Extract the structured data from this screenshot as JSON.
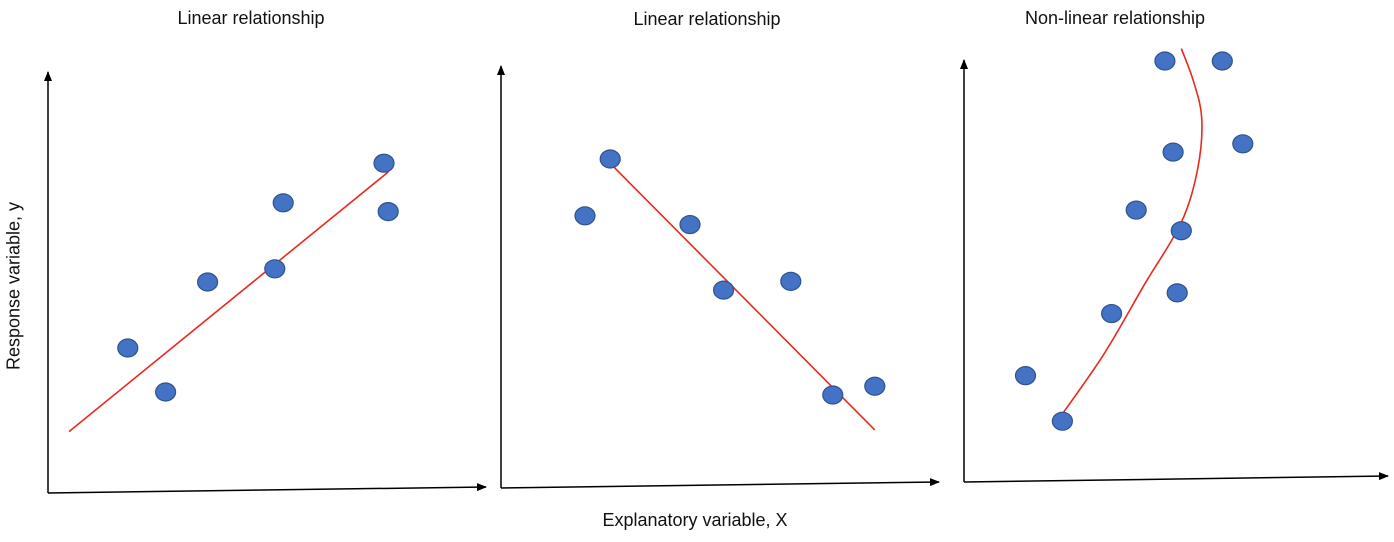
{
  "chart_data": [
    {
      "type": "scatter",
      "title": "Linear relationship",
      "xlabel": "",
      "ylabel": "Response variable, y",
      "xlim": [
        0,
        10
      ],
      "ylim": [
        0,
        10
      ],
      "points": [
        {
          "x": 1.9,
          "y": 3.0
        },
        {
          "x": 2.8,
          "y": 2.0
        },
        {
          "x": 3.8,
          "y": 4.5
        },
        {
          "x": 5.4,
          "y": 4.8
        },
        {
          "x": 5.6,
          "y": 6.3
        },
        {
          "x": 8.0,
          "y": 7.2
        },
        {
          "x": 8.1,
          "y": 6.1
        }
      ],
      "fit": {
        "type": "linear",
        "points": [
          {
            "x": 0.5,
            "y": 1.1
          },
          {
            "x": 8.1,
            "y": 7.0
          }
        ],
        "color": "#e8291c"
      },
      "point_color": "#4472c4",
      "grid": false
    },
    {
      "type": "scatter",
      "title": "Linear relationship",
      "xlabel": "Explanatory variable, X",
      "ylabel": "",
      "xlim": [
        0,
        10
      ],
      "ylim": [
        0,
        10
      ],
      "points": [
        {
          "x": 2.0,
          "y": 6.0
        },
        {
          "x": 2.6,
          "y": 7.3
        },
        {
          "x": 4.5,
          "y": 5.8
        },
        {
          "x": 5.3,
          "y": 4.3
        },
        {
          "x": 6.9,
          "y": 4.5
        },
        {
          "x": 7.9,
          "y": 1.9
        },
        {
          "x": 8.9,
          "y": 2.1
        }
      ],
      "fit": {
        "type": "linear",
        "points": [
          {
            "x": 2.6,
            "y": 7.2
          },
          {
            "x": 8.9,
            "y": 1.1
          }
        ],
        "color": "#e8291c"
      },
      "point_color": "#4472c4",
      "grid": false
    },
    {
      "type": "scatter",
      "title": "Non-linear relationship",
      "xlabel": "",
      "ylabel": "",
      "xlim": [
        0,
        10
      ],
      "ylim": [
        0,
        10
      ],
      "points": [
        {
          "x": 1.5,
          "y": 2.4
        },
        {
          "x": 2.4,
          "y": 1.3
        },
        {
          "x": 3.6,
          "y": 3.9
        },
        {
          "x": 4.2,
          "y": 6.4
        },
        {
          "x": 4.9,
          "y": 10.0
        },
        {
          "x": 5.1,
          "y": 7.8
        },
        {
          "x": 5.2,
          "y": 4.4
        },
        {
          "x": 5.3,
          "y": 5.9
        },
        {
          "x": 6.3,
          "y": 10.0
        },
        {
          "x": 6.8,
          "y": 8.0
        }
      ],
      "fit": {
        "type": "curve",
        "points": [
          {
            "x": 2.2,
            "y": 1.2
          },
          {
            "x": 3.4,
            "y": 2.9
          },
          {
            "x": 4.4,
            "y": 4.6
          },
          {
            "x": 5.3,
            "y": 6.1
          },
          {
            "x": 5.7,
            "y": 7.4
          },
          {
            "x": 5.8,
            "y": 8.6
          },
          {
            "x": 5.6,
            "y": 9.5
          },
          {
            "x": 5.3,
            "y": 10.3
          }
        ],
        "color": "#e8291c"
      },
      "point_color": "#4472c4",
      "grid": false
    }
  ]
}
